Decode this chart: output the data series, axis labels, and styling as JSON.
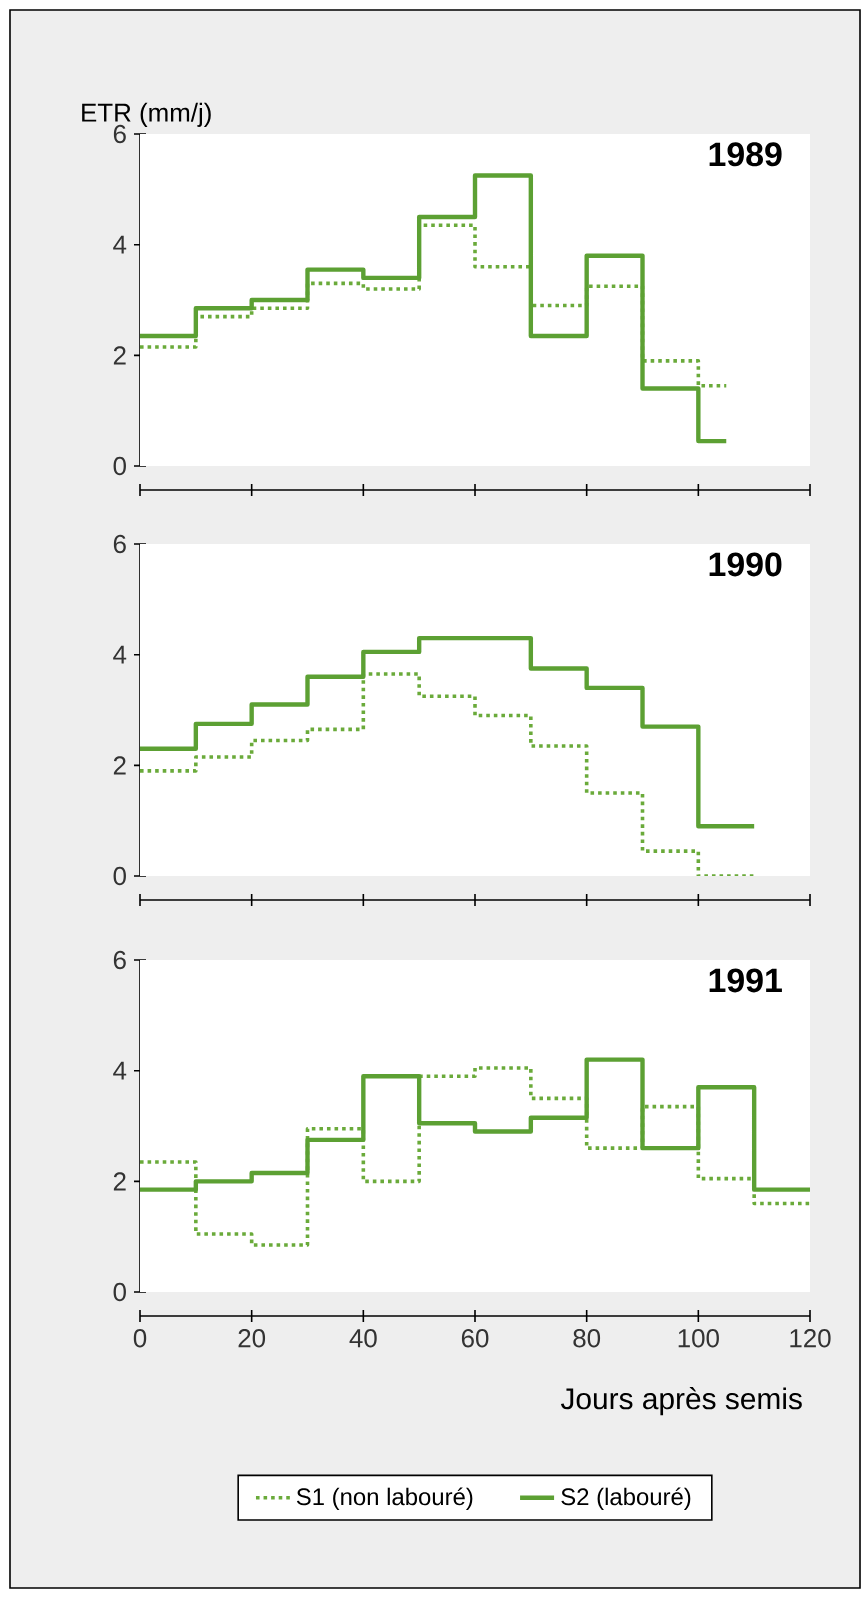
{
  "chart_data": [
    {
      "type": "step",
      "title": "1989",
      "ylabel": "ETR (mm/j)",
      "x": [
        0,
        10,
        20,
        30,
        40,
        50,
        60,
        70,
        80,
        90,
        100,
        105
      ],
      "xlim": [
        0,
        120
      ],
      "xticks": [
        0,
        20,
        40,
        60,
        80,
        100,
        120
      ],
      "ylim": [
        0,
        6
      ],
      "yticks": [
        0,
        2,
        4,
        6
      ],
      "tick_labels": "y",
      "grid": false,
      "legend": false,
      "series": [
        {
          "color": "#6aaa3a",
          "line_style": "dotted",
          "values": [
            2.15,
            2.7,
            2.85,
            3.3,
            3.2,
            4.35,
            3.6,
            2.9,
            3.25,
            1.9,
            1.45,
            1.45
          ]
        },
        {
          "color": "#5ca033",
          "line_style": "solid",
          "values": [
            2.35,
            2.85,
            3.0,
            3.55,
            3.4,
            4.5,
            5.25,
            2.35,
            3.8,
            1.4,
            0.45,
            0.45
          ]
        }
      ]
    },
    {
      "type": "step",
      "title": "1990",
      "x": [
        0,
        10,
        20,
        30,
        40,
        50,
        60,
        70,
        80,
        90,
        100,
        110
      ],
      "xlim": [
        0,
        120
      ],
      "xticks": [
        0,
        20,
        40,
        60,
        80,
        100,
        120
      ],
      "ylim": [
        0,
        6
      ],
      "yticks": [
        0,
        2,
        4,
        6
      ],
      "tick_labels": "y",
      "grid": false,
      "legend": false,
      "series": [
        {
          "color": "#6aaa3a",
          "line_style": "dotted",
          "values": [
            1.9,
            2.15,
            2.45,
            2.65,
            3.65,
            3.25,
            2.9,
            2.35,
            1.5,
            0.45,
            0.0,
            0.0
          ]
        },
        {
          "color": "#5ca033",
          "line_style": "solid",
          "values": [
            2.3,
            2.75,
            3.1,
            3.6,
            4.05,
            4.3,
            4.3,
            3.75,
            3.4,
            2.7,
            0.9,
            0.9
          ]
        }
      ]
    },
    {
      "type": "step",
      "title": "1991",
      "xlabel": "Jours après semis",
      "x": [
        0,
        10,
        20,
        30,
        40,
        50,
        60,
        70,
        80,
        90,
        100,
        110,
        120
      ],
      "xlim": [
        0,
        120
      ],
      "xticks": [
        0,
        20,
        40,
        60,
        80,
        100,
        120
      ],
      "ylim": [
        0,
        6
      ],
      "yticks": [
        0,
        2,
        4,
        6
      ],
      "grid": false,
      "legend": "bottom",
      "series": [
        {
          "name": "S1 (non labouré)",
          "color": "#6aaa3a",
          "line_style": "dotted",
          "values": [
            2.35,
            1.05,
            0.85,
            2.95,
            2.0,
            3.9,
            4.05,
            3.5,
            2.6,
            3.35,
            2.05,
            1.6,
            1.6
          ]
        },
        {
          "name": "S2 (labouré)",
          "color": "#5ca033",
          "line_style": "solid",
          "values": [
            1.85,
            2.0,
            2.15,
            2.75,
            3.9,
            3.05,
            2.9,
            3.15,
            4.2,
            2.6,
            3.7,
            1.85,
            1.85
          ]
        }
      ]
    }
  ]
}
